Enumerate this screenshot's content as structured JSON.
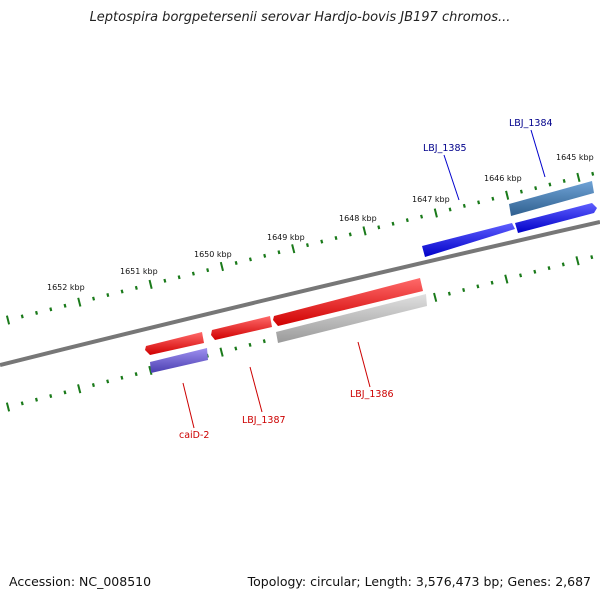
{
  "title": "Leptospira borgpetersenii serovar Hardjo-bovis JB197 chromos...",
  "accession": "Accession: NC_008510",
  "topology": "Topology: circular; Length: 3,576,473 bp; Genes: 2,687",
  "tick_labels": [
    "1645 kbp",
    "1646 kbp",
    "1647 kbp",
    "1648 kbp",
    "1649 kbp",
    "1650 kbp",
    "1651 kbp",
    "1652 kbp"
  ],
  "genes": {
    "lbj1384": "LBJ_1384",
    "lbj1385": "LBJ_1385",
    "lbj1386": "LBJ_1386",
    "lbj1387": "LBJ_1387",
    "caid2": "caiD-2"
  },
  "colors": {
    "forward_gene": "#0000ee",
    "forward_gene_alt": "#3a6fa0",
    "reverse_gene": "#ee1111",
    "reverse_gene_gray": "#a8a8a8",
    "reverse_gene_purple": "#6a5acd",
    "tick": "#1a7a1a",
    "backbone": "#777777",
    "label_forward": "#00008b",
    "label_reverse": "#cc0000"
  }
}
